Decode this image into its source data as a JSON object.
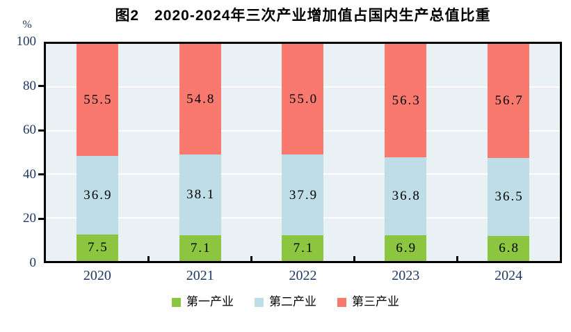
{
  "title": {
    "text": "图2　2020-2024年三次产业增加值占国内生产总值比重"
  },
  "y_axis": {
    "unit_label": "%"
  },
  "legend": {
    "items": [
      "第一产业",
      "第二产业",
      "第三产业"
    ]
  },
  "chart_data": {
    "type": "bar",
    "stacked": true,
    "title": "图2　2020-2024年三次产业增加值占国内生产总值比重",
    "categories": [
      "2020",
      "2021",
      "2022",
      "2023",
      "2024"
    ],
    "series": [
      {
        "name": "第一产业",
        "color": "#8CC540",
        "values": [
          7.5,
          7.1,
          7.1,
          6.9,
          6.8
        ],
        "labels": [
          "7.5",
          "7.1",
          "7.1",
          "6.9",
          "6.8"
        ]
      },
      {
        "name": "第二产业",
        "color": "#BFDDE6",
        "values": [
          36.9,
          38.1,
          37.9,
          36.8,
          36.5
        ],
        "labels": [
          "36.9",
          "38.1",
          "37.9",
          "36.8",
          "36.5"
        ]
      },
      {
        "name": "第三产业",
        "color": "#F9796F",
        "values": [
          55.5,
          54.8,
          55.0,
          56.3,
          56.7
        ],
        "labels": [
          "55.5",
          "54.8",
          "55.0",
          "56.3",
          "56.7"
        ]
      }
    ],
    "xlabel": "",
    "ylabel": "%",
    "ylim": [
      0,
      100
    ],
    "yticks": [
      0,
      20,
      40,
      60,
      80,
      100
    ],
    "grid": true,
    "legend_position": "bottom",
    "colors": {
      "plot_background": "#E9F1F5",
      "gridline": "#FFFFFF",
      "axis": "#000000",
      "tick_label": "#1F3864",
      "data_label": "#000000",
      "title": "#000000"
    }
  }
}
